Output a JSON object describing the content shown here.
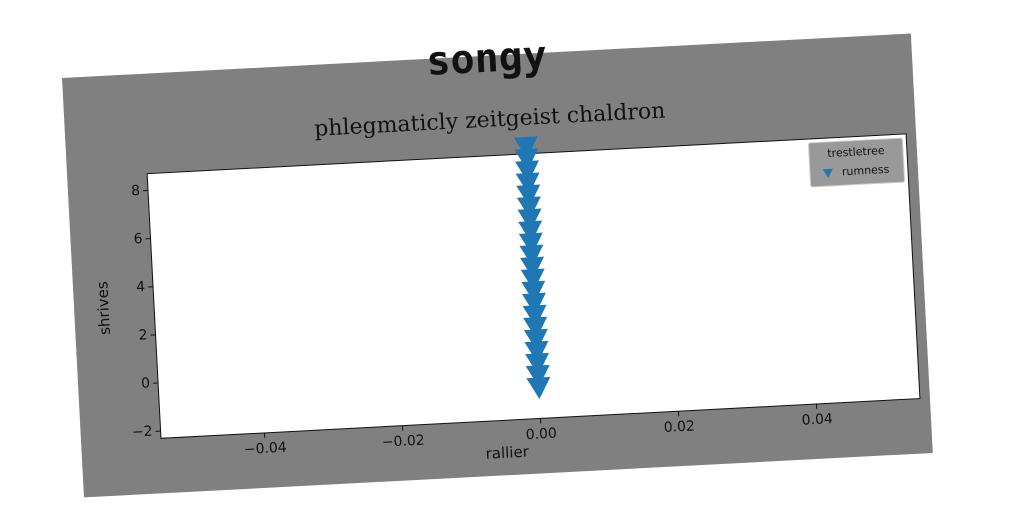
{
  "chart_data": {
    "type": "scatter",
    "title": "songy",
    "subtitle": "phlegmaticly zeitgeist chaldron",
    "xlabel": "rallier",
    "ylabel": "shrives",
    "legend_title": "trestletree",
    "legend": "upper right",
    "series": [
      {
        "name": "rumness",
        "color": "#1f77b4",
        "marker": "triangle-down",
        "x": [
          0,
          0,
          0,
          0,
          0,
          0,
          0,
          0,
          0,
          0,
          0,
          0,
          0,
          0,
          0,
          0,
          0,
          0,
          0,
          0,
          0
        ],
        "values": [
          -1,
          -0.5,
          0,
          0.5,
          1,
          1.5,
          2,
          2.5,
          3,
          3.5,
          4,
          4.5,
          5,
          5.5,
          6,
          6.5,
          7,
          7.5,
          8,
          8.5,
          9
        ]
      }
    ],
    "xlim": [
      -0.055,
      0.055
    ],
    "xticks": [
      {
        "value": -0.04,
        "label": "−0.04"
      },
      {
        "value": -0.02,
        "label": "−0.02"
      },
      {
        "value": 0,
        "label": "0.00"
      },
      {
        "value": 0.02,
        "label": "0.02"
      },
      {
        "value": 0.04,
        "label": "0.04"
      }
    ],
    "ylim": [
      -2.3,
      8.7
    ],
    "yticks": [
      {
        "value": -2,
        "label": "−2"
      },
      0,
      2,
      4,
      6,
      8
    ]
  }
}
